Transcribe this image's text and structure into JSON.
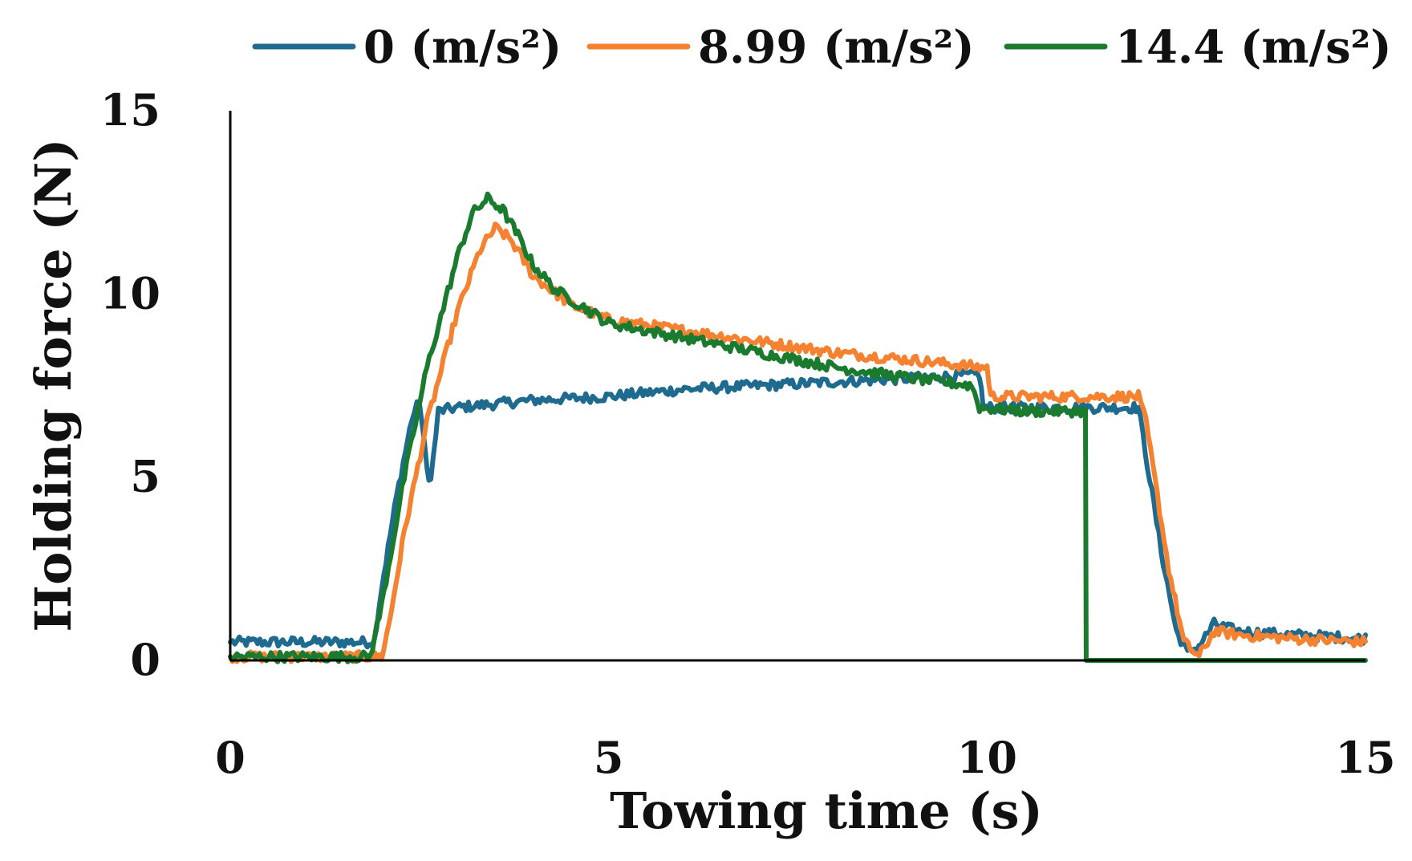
{
  "chart_data": {
    "type": "line",
    "title": "",
    "xlabel": "Towing time (s)",
    "ylabel": "Holding force (N)",
    "xlim": [
      0,
      15
    ],
    "ylim": [
      0,
      15
    ],
    "x_ticks": [
      0,
      5,
      10,
      15
    ],
    "y_ticks": [
      0,
      5,
      10,
      15
    ],
    "x_tick_labels": [
      "0",
      "5",
      "10",
      "15"
    ],
    "y_tick_labels": [
      "0",
      "5",
      "10",
      "15"
    ],
    "grid": false,
    "legend_position": "top",
    "series": [
      {
        "name": "0 (m/s²)",
        "color": "#1f6b8f",
        "points": [
          [
            0,
            0.5
          ],
          [
            1.9,
            0.5
          ],
          [
            2.0,
            2.0
          ],
          [
            2.2,
            4.5
          ],
          [
            2.4,
            6.6
          ],
          [
            2.5,
            7.1
          ],
          [
            2.6,
            5.2
          ],
          [
            2.65,
            4.9
          ],
          [
            2.75,
            6.8
          ],
          [
            3.0,
            6.9
          ],
          [
            3.5,
            7.0
          ],
          [
            4.0,
            7.1
          ],
          [
            5.0,
            7.2
          ],
          [
            6.0,
            7.4
          ],
          [
            7.0,
            7.5
          ],
          [
            8.0,
            7.6
          ],
          [
            9.0,
            7.7
          ],
          [
            9.9,
            7.8
          ],
          [
            9.95,
            6.9
          ],
          [
            10.5,
            6.9
          ],
          [
            11.0,
            6.9
          ],
          [
            11.5,
            6.9
          ],
          [
            12.0,
            6.9
          ],
          [
            12.3,
            3.0
          ],
          [
            12.5,
            0.8
          ],
          [
            12.65,
            0.2
          ],
          [
            12.8,
            0.4
          ],
          [
            13.0,
            1.0
          ],
          [
            13.3,
            0.8
          ],
          [
            14.0,
            0.7
          ],
          [
            15.0,
            0.6
          ]
        ]
      },
      {
        "name": "8.99 (m/s²)",
        "color": "#f58231",
        "points": [
          [
            0,
            0.1
          ],
          [
            2.0,
            0.1
          ],
          [
            2.1,
            1.0
          ],
          [
            2.3,
            3.5
          ],
          [
            2.6,
            6.5
          ],
          [
            3.0,
            9.5
          ],
          [
            3.3,
            11.2
          ],
          [
            3.5,
            11.8
          ],
          [
            3.7,
            11.5
          ],
          [
            4.0,
            10.5
          ],
          [
            4.5,
            9.7
          ],
          [
            5.0,
            9.3
          ],
          [
            6.0,
            9.0
          ],
          [
            7.0,
            8.7
          ],
          [
            8.0,
            8.4
          ],
          [
            9.0,
            8.2
          ],
          [
            9.9,
            8.0
          ],
          [
            10.0,
            8.0
          ],
          [
            10.05,
            7.2
          ],
          [
            11.0,
            7.2
          ],
          [
            12.0,
            7.2
          ],
          [
            12.1,
            6.5
          ],
          [
            12.4,
            2.5
          ],
          [
            12.6,
            0.5
          ],
          [
            12.8,
            0.1
          ],
          [
            13.0,
            0.8
          ],
          [
            13.3,
            0.7
          ],
          [
            14.0,
            0.6
          ],
          [
            15.0,
            0.5
          ]
        ]
      },
      {
        "name": "14.4 (m/s²)",
        "color": "#1a7a2e",
        "points": [
          [
            0,
            0.1
          ],
          [
            1.85,
            0.1
          ],
          [
            2.0,
            1.5
          ],
          [
            2.3,
            5.0
          ],
          [
            2.6,
            8.0
          ],
          [
            3.0,
            11.0
          ],
          [
            3.2,
            12.2
          ],
          [
            3.4,
            12.6
          ],
          [
            3.6,
            12.3
          ],
          [
            3.8,
            11.6
          ],
          [
            4.0,
            10.8
          ],
          [
            4.3,
            10.1
          ],
          [
            4.7,
            9.6
          ],
          [
            5.0,
            9.2
          ],
          [
            6.0,
            8.8
          ],
          [
            7.0,
            8.4
          ],
          [
            8.0,
            8.0
          ],
          [
            9.0,
            7.7
          ],
          [
            9.8,
            7.5
          ],
          [
            9.9,
            6.9
          ],
          [
            10.5,
            6.8
          ],
          [
            11.0,
            6.8
          ],
          [
            11.3,
            6.8
          ],
          [
            11.31,
            0.0
          ],
          [
            15.0,
            0.0
          ]
        ]
      }
    ]
  }
}
